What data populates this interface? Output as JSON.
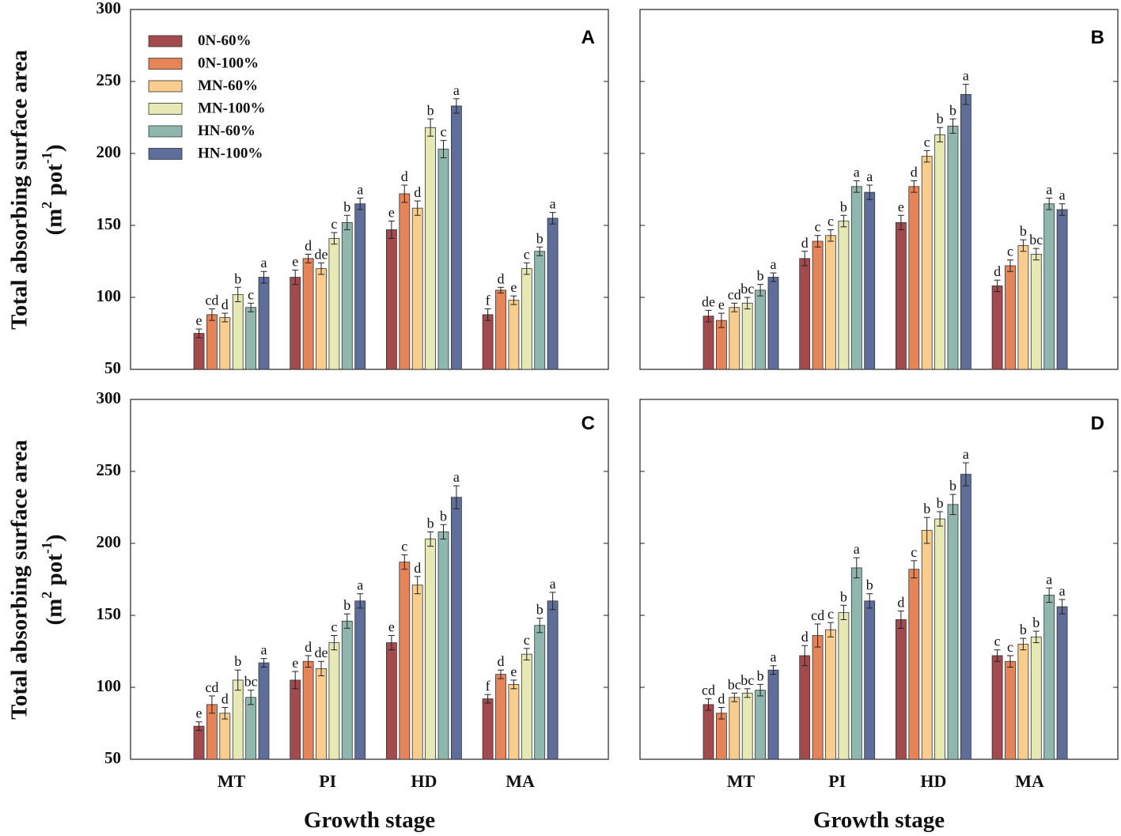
{
  "chart_data": {
    "type": "bar",
    "ylabel_line1": "Total absorbing surface area",
    "ylabel_line2": "(m2 pot-1)",
    "xlabel": "Growth stage",
    "categories": [
      "MT",
      "PI",
      "HD",
      "MA"
    ],
    "ylim": [
      50,
      300
    ],
    "yticks": [
      "50",
      "100",
      "150",
      "200",
      "250",
      "300"
    ],
    "series_names": [
      "0N-60%",
      "0N-100%",
      "MN-60%",
      "MN-100%",
      "HN-60%",
      "HN-100%"
    ],
    "series_colors": [
      "#a24a4e",
      "#e48458",
      "#f8cd8d",
      "#e7e9b5",
      "#8fb7ae",
      "#5f6d9a"
    ],
    "panels": [
      {
        "label": "A",
        "values": [
          [
            75,
            88,
            86,
            102,
            93,
            114
          ],
          [
            114,
            127,
            120,
            141,
            152,
            165
          ],
          [
            147,
            172,
            162,
            218,
            203,
            233
          ],
          [
            88,
            105,
            98,
            120,
            132,
            155
          ]
        ],
        "errors": [
          [
            3,
            4,
            3,
            5,
            3,
            4
          ],
          [
            5,
            3,
            4,
            4,
            5,
            4
          ],
          [
            6,
            6,
            5,
            6,
            6,
            5
          ],
          [
            4,
            2,
            3,
            4,
            3,
            4
          ]
        ],
        "letters": [
          [
            "e",
            "cd",
            "d",
            "b",
            "c",
            "a"
          ],
          [
            "e",
            "d",
            "de",
            "c",
            "b",
            "a"
          ],
          [
            "e",
            "d",
            "d",
            "b",
            "c",
            "a"
          ],
          [
            "f",
            "d",
            "e",
            "c",
            "b",
            "a"
          ]
        ]
      },
      {
        "label": "B",
        "values": [
          [
            87,
            84,
            93,
            96,
            105,
            114
          ],
          [
            127,
            139,
            143,
            153,
            177,
            173
          ],
          [
            152,
            177,
            198,
            213,
            219,
            241
          ],
          [
            108,
            122,
            136,
            130,
            165,
            161
          ]
        ],
        "errors": [
          [
            4,
            5,
            3,
            4,
            4,
            3
          ],
          [
            5,
            4,
            4,
            4,
            4,
            5
          ],
          [
            5,
            4,
            4,
            5,
            5,
            7
          ],
          [
            4,
            4,
            4,
            4,
            4,
            4
          ]
        ],
        "letters": [
          [
            "de",
            "e",
            "cd",
            "bc",
            "b",
            "a"
          ],
          [
            "d",
            "c",
            "c",
            "b",
            "a",
            "a"
          ],
          [
            "e",
            "d",
            "c",
            "b",
            "b",
            "a"
          ],
          [
            "d",
            "c",
            "b",
            "bc",
            "a",
            "a"
          ]
        ]
      },
      {
        "label": "C",
        "values": [
          [
            73,
            88,
            82,
            105,
            93,
            117
          ],
          [
            105,
            118,
            113,
            131,
            146,
            160
          ],
          [
            131,
            187,
            171,
            203,
            208,
            232
          ],
          [
            92,
            109,
            102,
            123,
            143,
            160
          ]
        ],
        "errors": [
          [
            3,
            6,
            4,
            7,
            5,
            3
          ],
          [
            6,
            4,
            5,
            5,
            5,
            5
          ],
          [
            5,
            5,
            6,
            5,
            5,
            8
          ],
          [
            3,
            3,
            3,
            4,
            5,
            6
          ]
        ],
        "letters": [
          [
            "e",
            "cd",
            "d",
            "b",
            "bc",
            "a"
          ],
          [
            "e",
            "d",
            "de",
            "c",
            "b",
            "a"
          ],
          [
            "e",
            "c",
            "d",
            "b",
            "b",
            "a"
          ],
          [
            "f",
            "d",
            "e",
            "c",
            "b",
            "a"
          ]
        ]
      },
      {
        "label": "D",
        "values": [
          [
            88,
            82,
            93,
            96,
            98,
            112
          ],
          [
            122,
            136,
            140,
            152,
            183,
            160
          ],
          [
            147,
            182,
            209,
            217,
            227,
            248
          ],
          [
            122,
            118,
            130,
            135,
            164,
            156
          ]
        ],
        "errors": [
          [
            4,
            4,
            3,
            3,
            4,
            3
          ],
          [
            7,
            8,
            5,
            5,
            7,
            5
          ],
          [
            6,
            6,
            9,
            5,
            7,
            8
          ],
          [
            4,
            4,
            4,
            4,
            5,
            5
          ]
        ],
        "letters": [
          [
            "cd",
            "d",
            "bc",
            "bc",
            "b",
            "a"
          ],
          [
            "d",
            "cd",
            "c",
            "b",
            "a",
            "b"
          ],
          [
            "d",
            "c",
            "b",
            "b",
            "b",
            "a"
          ],
          [
            "c",
            "c",
            "b",
            "b",
            "a",
            "a"
          ]
        ]
      }
    ]
  }
}
